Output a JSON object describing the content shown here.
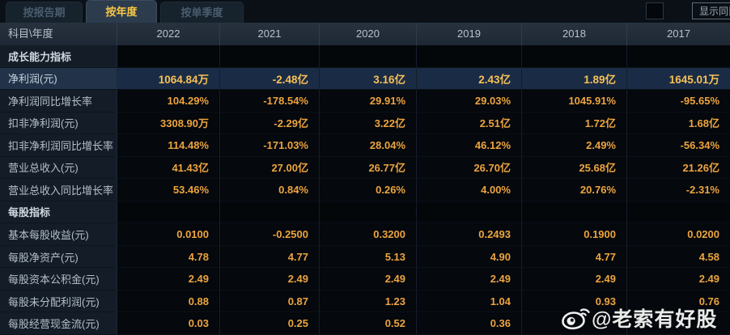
{
  "tabs": [
    {
      "label": "按报告期",
      "active": false
    },
    {
      "label": "按年度",
      "active": true
    },
    {
      "label": "按单季度",
      "active": false
    }
  ],
  "controls": {
    "show_yoy_label": "显示同比",
    "show_yoy_checked": false,
    "more_years_icon": "»"
  },
  "table": {
    "corner_label": "科目\\年度",
    "years": [
      "2022",
      "2021",
      "2020",
      "2019",
      "2018",
      "2017"
    ],
    "rows": [
      {
        "type": "section",
        "highlight": false,
        "label": "成长能力指标",
        "values": [
          "",
          "",
          "",
          "",
          "",
          ""
        ]
      },
      {
        "type": "data",
        "highlight": true,
        "label": "净利润(元)",
        "values": [
          "1064.84万",
          "-2.48亿",
          "3.16亿",
          "2.43亿",
          "1.89亿",
          "1645.01万"
        ]
      },
      {
        "type": "data",
        "highlight": false,
        "label": "净利润同比增长率",
        "values": [
          "104.29%",
          "-178.54%",
          "29.91%",
          "29.03%",
          "1045.91%",
          "-95.65%"
        ]
      },
      {
        "type": "data",
        "highlight": false,
        "label": "扣非净利润(元)",
        "values": [
          "3308.90万",
          "-2.29亿",
          "3.22亿",
          "2.51亿",
          "1.72亿",
          "1.68亿"
        ]
      },
      {
        "type": "data",
        "highlight": false,
        "label": "扣非净利润同比增长率",
        "values": [
          "114.48%",
          "-171.03%",
          "28.04%",
          "46.12%",
          "2.49%",
          "-56.34%"
        ]
      },
      {
        "type": "data",
        "highlight": false,
        "label": "营业总收入(元)",
        "values": [
          "41.43亿",
          "27.00亿",
          "26.77亿",
          "26.70亿",
          "25.68亿",
          "21.26亿"
        ]
      },
      {
        "type": "data",
        "highlight": false,
        "label": "营业总收入同比增长率",
        "values": [
          "53.46%",
          "0.84%",
          "0.26%",
          "4.00%",
          "20.76%",
          "-2.31%"
        ]
      },
      {
        "type": "section",
        "highlight": false,
        "label": "每股指标",
        "values": [
          "",
          "",
          "",
          "",
          "",
          ""
        ]
      },
      {
        "type": "data",
        "highlight": false,
        "label": "基本每股收益(元)",
        "values": [
          "0.0100",
          "-0.2500",
          "0.3200",
          "0.2493",
          "0.1900",
          "0.0200"
        ]
      },
      {
        "type": "data",
        "highlight": false,
        "label": "每股净资产(元)",
        "values": [
          "4.78",
          "4.77",
          "5.13",
          "4.90",
          "4.77",
          "4.58"
        ]
      },
      {
        "type": "data",
        "highlight": false,
        "label": "每股资本公积金(元)",
        "values": [
          "2.49",
          "2.49",
          "2.49",
          "2.49",
          "2.49",
          "2.49"
        ]
      },
      {
        "type": "data",
        "highlight": false,
        "label": "每股未分配利润(元)",
        "values": [
          "0.88",
          "0.87",
          "1.23",
          "1.04",
          "0.93",
          "0.76"
        ]
      },
      {
        "type": "data",
        "highlight": false,
        "label": "每股经营现金流(元)",
        "values": [
          "0.03",
          "0.25",
          "0.52",
          "0.36",
          "",
          ""
        ]
      }
    ]
  },
  "watermark": {
    "text": "@老索有好股",
    "icon": "weibo-icon"
  },
  "colors": {
    "value_gold": "#eca43f",
    "highlight_gold": "#f6c155",
    "active_tab_gold": "#f8c647",
    "highlight_row_bg": "#1a2b46",
    "label_col_bg": "#141d27",
    "header_row_bg": "#212c38"
  }
}
